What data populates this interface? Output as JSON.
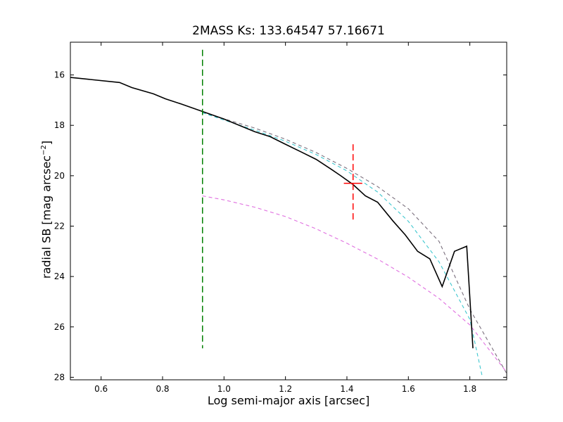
{
  "chart_data": {
    "type": "line",
    "title": "2MASS Ks: 133.64547 57.16671",
    "xlabel": "Log semi-major axis [arcsec]",
    "ylabel_main": "radial SB [mag arcsec",
    "ylabel_exp": "−2",
    "ylabel_close": "]",
    "xlim": [
      0.5,
      1.92
    ],
    "ylim": [
      28.1,
      14.7
    ],
    "y_inverted": true,
    "xticks": [
      0.6,
      0.8,
      1.0,
      1.2,
      1.4,
      1.6,
      1.8
    ],
    "xtick_labels": [
      "0.6",
      "0.8",
      "1.0",
      "1.2",
      "1.4",
      "1.6",
      "1.8"
    ],
    "yticks": [
      16,
      18,
      20,
      22,
      24,
      26,
      28
    ],
    "ytick_labels": [
      "16",
      "18",
      "20",
      "22",
      "24",
      "26",
      "28"
    ],
    "grid": false,
    "legend": "none",
    "series": [
      {
        "style": "solid",
        "color": "#000000",
        "x": [
          0.5,
          0.66,
          0.7,
          0.77,
          0.81,
          0.86,
          0.93,
          1.0,
          1.05,
          1.1,
          1.15,
          1.2,
          1.25,
          1.3,
          1.35,
          1.38,
          1.42,
          1.46,
          1.5,
          1.55,
          1.59,
          1.63,
          1.67,
          1.71,
          1.75,
          1.79,
          1.81
        ],
        "y": [
          16.1,
          16.3,
          16.5,
          16.75,
          16.95,
          17.15,
          17.45,
          17.75,
          18.0,
          18.25,
          18.45,
          18.75,
          19.05,
          19.35,
          19.75,
          20.0,
          20.35,
          20.8,
          21.05,
          21.8,
          22.35,
          23.0,
          23.3,
          24.4,
          23.0,
          22.8,
          26.85
        ]
      },
      {
        "style": "dashed",
        "color": "#7a6f7d",
        "x": [
          0.93,
          1.0,
          1.1,
          1.2,
          1.3,
          1.4,
          1.5,
          1.6,
          1.7,
          1.8,
          1.92
        ],
        "y": [
          17.5,
          17.74,
          18.11,
          18.55,
          19.08,
          19.71,
          20.43,
          21.31,
          22.61,
          25.3,
          27.85
        ]
      },
      {
        "style": "dashed",
        "color": "#3ec7cf",
        "x": [
          0.93,
          1.0,
          1.1,
          1.2,
          1.3,
          1.4,
          1.5,
          1.6,
          1.7,
          1.8,
          1.84
        ],
        "y": [
          17.5,
          17.79,
          18.19,
          18.63,
          19.16,
          19.81,
          20.65,
          21.81,
          23.42,
          25.7,
          27.95
        ]
      },
      {
        "style": "dashed",
        "color": "#e070e0",
        "x": [
          0.93,
          1.0,
          1.1,
          1.2,
          1.3,
          1.4,
          1.5,
          1.6,
          1.7,
          1.8,
          1.92
        ],
        "y": [
          20.8,
          20.96,
          21.25,
          21.62,
          22.11,
          22.68,
          23.31,
          24.03,
          24.87,
          25.92,
          27.8
        ]
      }
    ],
    "annotations": [
      {
        "type": "vline",
        "color": "#008000",
        "x": 0.93,
        "y_range": [
          15.0,
          26.85
        ]
      },
      {
        "type": "vline",
        "color": "#ff0000",
        "x": 1.42,
        "y_range": [
          18.75,
          21.8
        ]
      },
      {
        "type": "hline",
        "color": "#ff0000",
        "y": 20.3,
        "x_range": [
          1.39,
          1.45
        ]
      }
    ]
  }
}
